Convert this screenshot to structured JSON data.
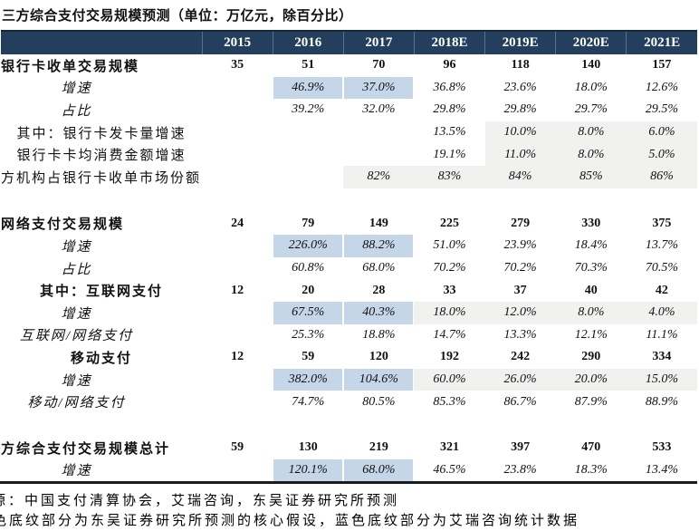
{
  "title": "三方综合支付交易规模预测（单位：万亿元，除百分比）",
  "colors": {
    "header_bg": "#243e5e",
    "header_divider": "#5a7090",
    "highlight_blue": "#c5d6e9",
    "highlight_gray": "#f1f1f0",
    "bottom_border": "#1c1c1c"
  },
  "table": {
    "columns": [
      "2015",
      "2016",
      "2017",
      "2018E",
      "2019E",
      "2020E",
      "2021E"
    ],
    "rows": [
      {
        "label": "银行卡收单交易规模",
        "style": "scale-cut",
        "values": [
          "35",
          "51",
          "70",
          "96",
          "118",
          "140",
          "157"
        ],
        "hl": [
          "",
          "",
          "",
          "",
          "",
          "",
          ""
        ]
      },
      {
        "label": "增速",
        "style": "pct-italic",
        "values": [
          "",
          "46.9%",
          "37.0%",
          "36.8%",
          "23.6%",
          "18.0%",
          "12.6%"
        ],
        "hl": [
          "",
          "b",
          "b",
          "",
          "",
          "",
          ""
        ]
      },
      {
        "label": "占比",
        "style": "pct-italic",
        "values": [
          "",
          "39.2%",
          "32.0%",
          "29.8%",
          "29.8%",
          "29.7%",
          "29.5%"
        ],
        "hl": [
          "",
          "",
          "",
          "",
          "",
          "",
          ""
        ]
      },
      {
        "label": "其中：银行卡发卡量增速",
        "style": "pct-plain",
        "values": [
          "",
          "",
          "",
          "13.5%",
          "10.0%",
          "8.0%",
          "6.0%"
        ],
        "hl": [
          "",
          "",
          "",
          "",
          "g",
          "g",
          "g"
        ]
      },
      {
        "label": "银行卡卡均消费金额增速",
        "style": "pct-plain",
        "values": [
          "",
          "",
          "",
          "19.1%",
          "11.0%",
          "8.0%",
          "5.0%"
        ],
        "hl": [
          "",
          "",
          "",
          "",
          "g",
          "g",
          "g"
        ]
      },
      {
        "label": "方机构占银行卡收单市场份额",
        "style": "pct-plain-cut",
        "values": [
          "",
          "",
          "82%",
          "83%",
          "84%",
          "85%",
          "86%"
        ],
        "hl": [
          "",
          "",
          "g",
          "g",
          "g",
          "g",
          "g"
        ]
      },
      {
        "style": "spacer",
        "height": 27
      },
      {
        "label": "网络支付交易规模",
        "style": "scale-cut",
        "values": [
          "24",
          "79",
          "149",
          "225",
          "279",
          "330",
          "375"
        ],
        "hl": [
          "",
          "",
          "",
          "",
          "",
          "",
          ""
        ]
      },
      {
        "label": "增速",
        "style": "pct-italic",
        "values": [
          "",
          "226.0%",
          "88.2%",
          "51.0%",
          "23.9%",
          "18.4%",
          "13.7%"
        ],
        "hl": [
          "",
          "b",
          "b",
          "",
          "",
          "",
          ""
        ]
      },
      {
        "label": "占比",
        "style": "pct-italic",
        "values": [
          "",
          "60.8%",
          "68.0%",
          "70.2%",
          "70.2%",
          "70.3%",
          "70.5%"
        ],
        "hl": [
          "",
          "",
          "",
          "",
          "",
          "",
          ""
        ]
      },
      {
        "label": "其中：互联网支付",
        "style": "scale-center",
        "values": [
          "12",
          "20",
          "28",
          "33",
          "37",
          "40",
          "42"
        ],
        "hl": [
          "",
          "",
          "",
          "",
          "",
          "",
          ""
        ]
      },
      {
        "label": "增速",
        "style": "pct-italic",
        "values": [
          "",
          "67.5%",
          "40.3%",
          "18.0%",
          "12.0%",
          "8.0%",
          "4.0%"
        ],
        "hl": [
          "",
          "b",
          "b",
          "g",
          "g",
          "g",
          "g"
        ]
      },
      {
        "label": "互联网/网络支付",
        "style": "pct-italic",
        "values": [
          "",
          "25.3%",
          "18.8%",
          "14.7%",
          "13.3%",
          "12.1%",
          "11.1%"
        ],
        "hl": [
          "",
          "",
          "",
          "",
          "",
          "",
          ""
        ]
      },
      {
        "label": "移动支付",
        "style": "scale-center",
        "values": [
          "12",
          "59",
          "120",
          "192",
          "242",
          "290",
          "334"
        ],
        "hl": [
          "",
          "",
          "",
          "",
          "",
          "",
          ""
        ]
      },
      {
        "label": "增速",
        "style": "pct-italic",
        "values": [
          "",
          "382.0%",
          "104.6%",
          "60.0%",
          "26.0%",
          "20.0%",
          "15.0%"
        ],
        "hl": [
          "",
          "b",
          "b",
          "g",
          "g",
          "g",
          "g"
        ]
      },
      {
        "label": "移动/网络支付",
        "style": "pct-italic",
        "values": [
          "",
          "74.7%",
          "80.5%",
          "85.3%",
          "86.7%",
          "87.9%",
          "88.9%"
        ],
        "hl": [
          "",
          "",
          "",
          "",
          "",
          "",
          ""
        ]
      },
      {
        "style": "spacer",
        "height": 26
      },
      {
        "label": "方综合支付交易规模总计",
        "style": "scale-cut",
        "values": [
          "59",
          "130",
          "219",
          "321",
          "397",
          "470",
          "533"
        ],
        "hl": [
          "",
          "",
          "",
          "",
          "",
          "",
          ""
        ]
      },
      {
        "label": "增速",
        "style": "pct-italic",
        "values": [
          "",
          "120.1%",
          "68.0%",
          "46.5%",
          "23.8%",
          "18.3%",
          "13.4%"
        ],
        "hl": [
          "",
          "b",
          "b",
          "",
          "",
          "",
          ""
        ]
      }
    ]
  },
  "footnotes": [
    "源：中国支付清算协会，艾瑞咨询，东吴证券研究所预测",
    "色底纹部分为东吴证券研究所预测的核心假设，蓝色底纹部分为艾瑞咨询统计数据"
  ]
}
